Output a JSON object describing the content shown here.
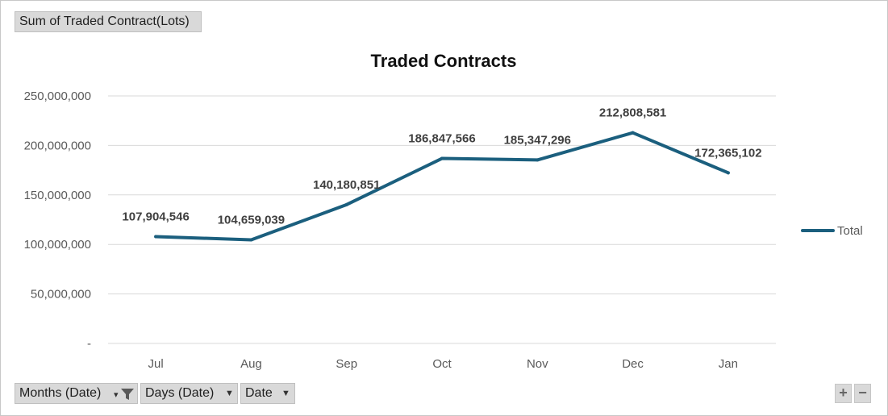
{
  "value_field": "Sum of Traded Contract(Lots)",
  "axis_fields": [
    "Months (Date)",
    "Days (Date)",
    "Date"
  ],
  "zoom_buttons": {
    "expand": "+",
    "collapse": "−"
  },
  "colors": {
    "line": "#1b5f7e",
    "grid": "#d9d9d9",
    "text": "#595959",
    "label": "#404040"
  },
  "chart_data": {
    "type": "line",
    "title": "Traded Contracts",
    "categories": [
      "Jul",
      "Aug",
      "Sep",
      "Oct",
      "Nov",
      "Dec",
      "Jan"
    ],
    "series": [
      {
        "name": "Total",
        "values": [
          107904546,
          104659039,
          140180851,
          186847566,
          185347296,
          212808581,
          172365102
        ],
        "labels": [
          "107,904,546",
          "104,659,039",
          "140,180,851",
          "186,847,566",
          "185,347,296",
          "212,808,581",
          "172,365,102"
        ]
      }
    ],
    "y_ticks": [
      0,
      50000000,
      100000000,
      150000000,
      200000000,
      250000000
    ],
    "y_tick_labels": [
      "-",
      "50,000,000",
      "100,000,000",
      "150,000,000",
      "200,000,000",
      "250,000,000"
    ],
    "ylim": [
      0,
      250000000
    ],
    "grid": true,
    "legend": "right"
  }
}
